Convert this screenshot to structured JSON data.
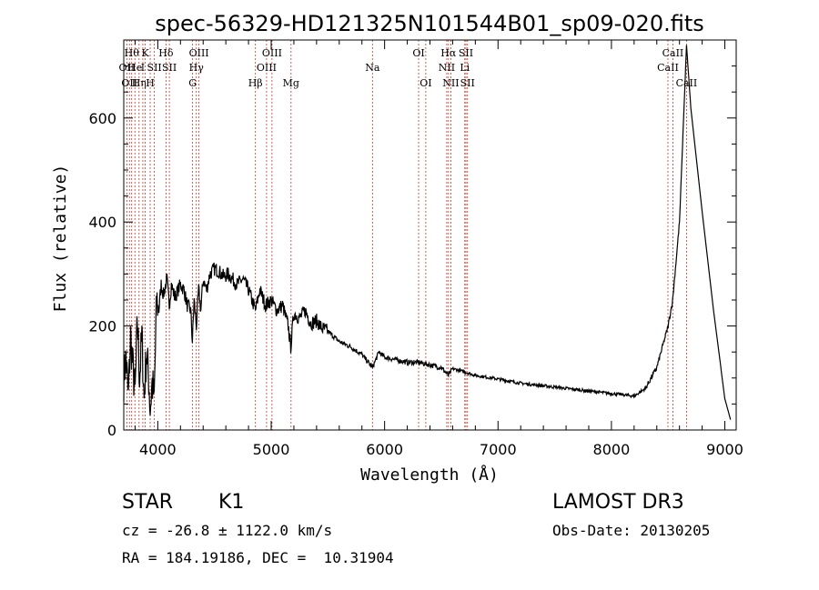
{
  "chart_data": {
    "type": "line",
    "title": "spec-56329-HD121325N101544B01_sp09-020.fits",
    "xlabel": "Wavelength (Å)",
    "ylabel": "Flux (relative)",
    "xlim": [
      3700,
      9100
    ],
    "ylim": [
      0,
      750
    ],
    "xticks": [
      4000,
      5000,
      6000,
      7000,
      8000,
      9000
    ],
    "yticks": [
      0,
      200,
      400,
      600
    ],
    "series": [
      {
        "name": "flux",
        "x": [
          3700,
          3720,
          3740,
          3760,
          3780,
          3800,
          3820,
          3840,
          3860,
          3880,
          3900,
          3920,
          3933,
          3950,
          3968,
          3990,
          4010,
          4030,
          4050,
          4080,
          4101,
          4120,
          4150,
          4180,
          4200,
          4230,
          4260,
          4290,
          4305,
          4320,
          4340,
          4360,
          4380,
          4400,
          4430,
          4460,
          4500,
          4540,
          4580,
          4620,
          4660,
          4700,
          4750,
          4800,
          4861,
          4900,
          4950,
          5000,
          5050,
          5100,
          5150,
          5172,
          5200,
          5250,
          5300,
          5350,
          5400,
          5450,
          5500,
          5600,
          5700,
          5800,
          5893,
          5950,
          6000,
          6100,
          6200,
          6300,
          6400,
          6500,
          6563,
          6600,
          6700,
          6800,
          7000,
          7200,
          7400,
          7600,
          7800,
          8000,
          8100,
          8200,
          8300,
          8350,
          8400,
          8450,
          8500,
          8540,
          8560,
          8600,
          8662,
          8700,
          8800,
          8900,
          9000,
          9050
        ],
        "y": [
          100,
          140,
          60,
          180,
          120,
          70,
          210,
          100,
          180,
          60,
          150,
          100,
          40,
          90,
          60,
          250,
          230,
          280,
          260,
          290,
          240,
          280,
          255,
          270,
          280,
          270,
          240,
          230,
          170,
          250,
          200,
          270,
          230,
          290,
          270,
          300,
          310,
          305,
          295,
          300,
          290,
          280,
          290,
          270,
          230,
          270,
          240,
          250,
          230,
          240,
          200,
          160,
          225,
          215,
          230,
          205,
          210,
          195,
          190,
          170,
          160,
          145,
          120,
          150,
          140,
          135,
          130,
          130,
          125,
          120,
          105,
          118,
          112,
          105,
          98,
          90,
          85,
          80,
          75,
          70,
          68,
          65,
          80,
          100,
          120,
          160,
          200,
          250,
          300,
          400,
          740,
          620,
          420,
          230,
          60,
          20
        ]
      }
    ],
    "line_markers": [
      {
        "w": 3727,
        "label": "OII",
        "row": 2
      },
      {
        "w": 3750,
        "label": "OII",
        "row": 3
      },
      {
        "w": 3770,
        "label": "Hθ",
        "row": 1
      },
      {
        "w": 3798,
        "label": "He",
        "row": 2
      },
      {
        "w": 3835,
        "label": "Hη",
        "row": 3
      },
      {
        "w": 3868,
        "label": "I",
        "row": 2
      },
      {
        "w": 3889,
        "label": "K",
        "row": 1
      },
      {
        "w": 3933,
        "label": "H",
        "row": 3
      },
      {
        "w": 3970,
        "label": "SII",
        "row": 2
      },
      {
        "w": 4072,
        "label": "Hδ",
        "row": 1
      },
      {
        "w": 4102,
        "label": "SII",
        "row": 2
      },
      {
        "w": 4307,
        "label": "G",
        "row": 3
      },
      {
        "w": 4340,
        "label": "Hγ",
        "row": 2
      },
      {
        "w": 4363,
        "label": "OIII",
        "row": 1
      },
      {
        "w": 4861,
        "label": "Hβ",
        "row": 3
      },
      {
        "w": 4959,
        "label": "OIII",
        "row": 2
      },
      {
        "w": 5007,
        "label": "OIII",
        "row": 1
      },
      {
        "w": 5175,
        "label": "Mg",
        "row": 3
      },
      {
        "w": 5893,
        "label": "Na",
        "row": 2
      },
      {
        "w": 6300,
        "label": "OI",
        "row": 1
      },
      {
        "w": 6363,
        "label": "OI",
        "row": 3
      },
      {
        "w": 6548,
        "label": "NII",
        "row": 2
      },
      {
        "w": 6563,
        "label": "Hα",
        "row": 1
      },
      {
        "w": 6584,
        "label": "NII",
        "row": 3
      },
      {
        "w": 6707,
        "label": "Li",
        "row": 2
      },
      {
        "w": 6717,
        "label": "SII",
        "row": 1
      },
      {
        "w": 6731,
        "label": "SII",
        "row": 3
      },
      {
        "w": 8498,
        "label": "CaII",
        "row": 2
      },
      {
        "w": 8542,
        "label": "CaII",
        "row": 1
      },
      {
        "w": 8662,
        "label": "CaII",
        "row": 3
      }
    ]
  },
  "info": {
    "object_class": "STAR",
    "subclass": "K1",
    "survey": "LAMOST DR3",
    "cz_line": "cz = -26.8 ± 1122.0 km/s",
    "obs_date": "Obs-Date: 20130205",
    "radec": "RA = 184.19186, DEC =  10.31904"
  }
}
